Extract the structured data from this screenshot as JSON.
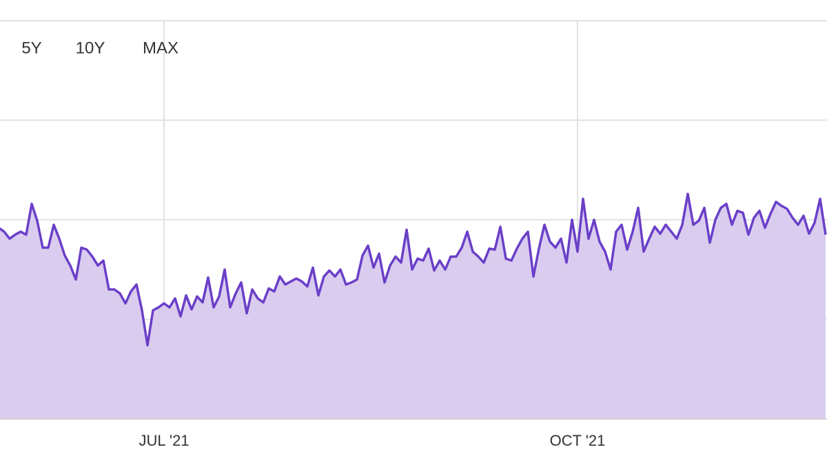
{
  "range_buttons": [
    "5Y",
    "10Y",
    "MAX"
  ],
  "chart_data": {
    "type": "area",
    "categories": [
      null,
      null,
      null,
      null,
      null,
      null,
      null,
      null,
      null,
      null,
      null,
      null,
      null,
      null,
      null,
      null,
      null,
      null,
      null,
      null,
      null,
      null,
      null,
      null,
      null,
      null,
      null,
      null,
      null,
      null,
      "JUL '21",
      null,
      null,
      null,
      null,
      null,
      null,
      null,
      null,
      null,
      null,
      null,
      null,
      null,
      null,
      null,
      null,
      null,
      null,
      null,
      null,
      null,
      null,
      null,
      null,
      null,
      null,
      null,
      null,
      null,
      null,
      null,
      null,
      null,
      null,
      null,
      null,
      null,
      null,
      null,
      null,
      null,
      null,
      null,
      null,
      null,
      null,
      null,
      null,
      null,
      null,
      null,
      null,
      null,
      null,
      null,
      null,
      null,
      null,
      null,
      null,
      null,
      null,
      null,
      null,
      null,
      null,
      null,
      null,
      null,
      null,
      null,
      null,
      null,
      null,
      "OCT '21",
      null,
      null,
      null,
      null,
      null,
      null,
      null,
      null,
      null,
      null,
      null,
      null,
      null,
      null,
      null,
      null,
      null,
      null,
      null,
      null,
      null,
      null,
      null,
      null,
      null,
      null,
      null,
      null,
      null,
      null,
      null,
      null,
      null,
      null,
      null,
      null,
      null,
      null,
      null,
      null,
      null,
      null,
      null,
      null,
      null
    ],
    "values": [
      1.92,
      1.88,
      1.81,
      1.85,
      1.88,
      1.85,
      2.16,
      1.99,
      1.72,
      1.72,
      1.95,
      1.81,
      1.64,
      1.54,
      1.4,
      1.72,
      1.7,
      1.63,
      1.54,
      1.59,
      1.3,
      1.3,
      1.26,
      1.16,
      1.28,
      1.35,
      1.09,
      0.74,
      1.09,
      1.12,
      1.16,
      1.12,
      1.21,
      1.03,
      1.24,
      1.1,
      1.23,
      1.17,
      1.42,
      1.12,
      1.23,
      1.5,
      1.12,
      1.26,
      1.37,
      1.06,
      1.3,
      1.21,
      1.17,
      1.31,
      1.28,
      1.43,
      1.35,
      1.38,
      1.41,
      1.38,
      1.33,
      1.52,
      1.24,
      1.43,
      1.49,
      1.43,
      1.5,
      1.35,
      1.37,
      1.4,
      1.64,
      1.74,
      1.52,
      1.66,
      1.37,
      1.54,
      1.63,
      1.57,
      1.9,
      1.5,
      1.61,
      1.59,
      1.71,
      1.49,
      1.59,
      1.5,
      1.63,
      1.63,
      1.72,
      1.88,
      1.68,
      1.63,
      1.57,
      1.71,
      1.7,
      1.93,
      1.61,
      1.59,
      1.71,
      1.81,
      1.88,
      1.43,
      1.71,
      1.95,
      1.78,
      1.72,
      1.81,
      1.57,
      2.0,
      1.68,
      2.21,
      1.81,
      2.0,
      1.78,
      1.68,
      1.5,
      1.88,
      1.95,
      1.7,
      1.88,
      2.12,
      1.68,
      1.81,
      1.93,
      1.86,
      1.95,
      1.88,
      1.81,
      1.95,
      2.26,
      1.95,
      1.99,
      2.12,
      1.77,
      2.0,
      2.12,
      2.16,
      1.95,
      2.09,
      2.07,
      1.85,
      2.02,
      2.09,
      1.92,
      2.06,
      2.18,
      2.14,
      2.11,
      2.02,
      1.95,
      2.04,
      1.86,
      1.97,
      2.21,
      1.85
    ],
    "color": "#6a3fc8",
    "fill_color": "#d9ccef",
    "ylim": [
      0,
      4
    ],
    "yticks": [
      0,
      1,
      2,
      3,
      4
    ],
    "grid": true
  }
}
